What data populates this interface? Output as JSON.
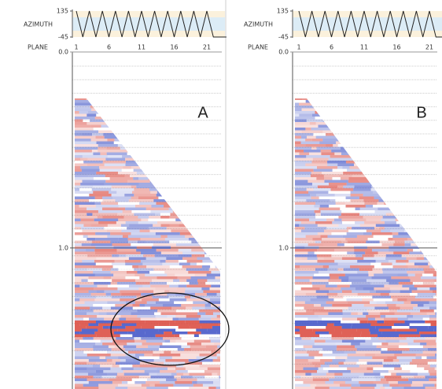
{
  "panels": [
    {
      "label": "A",
      "azimuth": {
        "axis_label": "AZIMUTH",
        "ylim": [
          -45,
          135
        ],
        "yticks": [
          -45,
          135
        ],
        "values": [
          135,
          -45,
          135,
          -45,
          135,
          -45,
          135,
          -45,
          135,
          -45,
          135,
          -45,
          135,
          -45,
          135,
          -45,
          135,
          -45,
          135,
          -45,
          135,
          -45,
          -45,
          -45
        ]
      },
      "plane": {
        "axis_label": "PLANE",
        "xlim": [
          1,
          24
        ],
        "ticks": [
          1,
          6,
          11,
          16,
          21
        ]
      },
      "time": {
        "ylim": [
          0,
          1.72
        ],
        "ticks": [
          {
            "value": 0,
            "label": "0.0"
          },
          {
            "value": 1,
            "label": "1.0"
          }
        ]
      }
    },
    {
      "label": "B",
      "azimuth": {
        "axis_label": "AZIMUTH",
        "ylim": [
          -45,
          135
        ],
        "yticks": [
          -45,
          135
        ],
        "values": [
          135,
          -45,
          135,
          -45,
          135,
          -45,
          135,
          -45,
          135,
          -45,
          135,
          -45,
          135,
          -45,
          135,
          -45,
          135,
          -45,
          135,
          -45,
          135,
          -45,
          -45,
          -45
        ]
      },
      "plane": {
        "axis_label": "PLANE",
        "xlim": [
          1,
          24
        ],
        "ticks": [
          1,
          6,
          11,
          16,
          21
        ]
      },
      "time": {
        "ylim": [
          0,
          1.72
        ],
        "ticks": [
          {
            "value": 0,
            "label": "0.0"
          },
          {
            "value": 1,
            "label": "1.0"
          }
        ]
      }
    }
  ]
}
